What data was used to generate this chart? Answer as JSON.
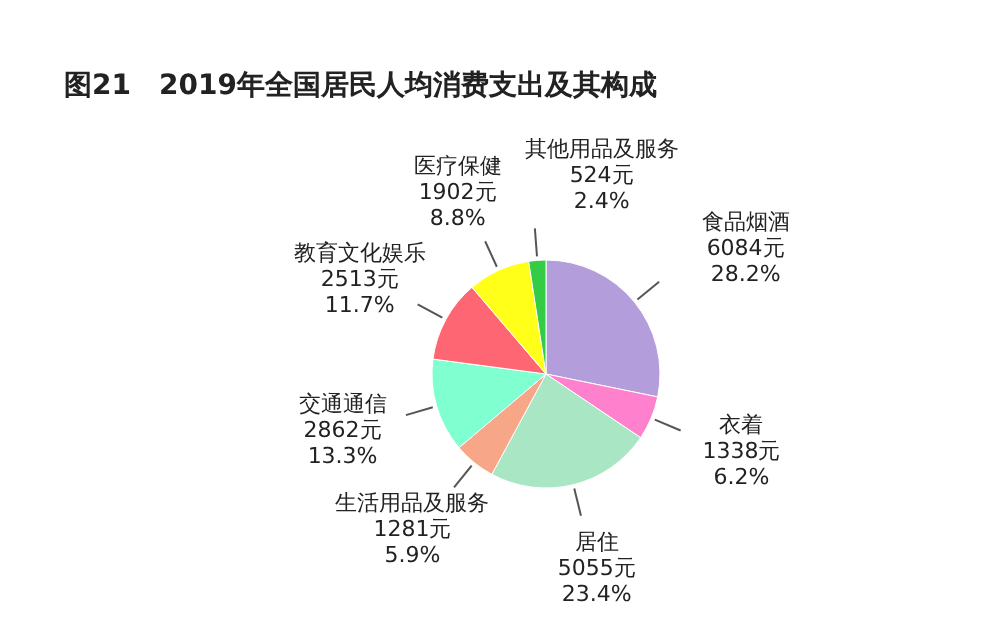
{
  "chart_data": {
    "type": "pie",
    "title": "图21　2019年全国居民人均消费支出及其构成",
    "categories": [
      "食品烟酒",
      "衣着",
      "居住",
      "生活用品及服务",
      "交通通信",
      "教育文化娱乐",
      "医疗保健",
      "其他用品及服务"
    ],
    "values": [
      6084,
      1338,
      5055,
      1281,
      2862,
      2513,
      1902,
      524
    ],
    "colors": [
      "#b39ddb",
      "#ff80cc",
      "#a8e6c4",
      "#f7a688",
      "#80ffd0",
      "#ff6673",
      "#ffff1a",
      "#33cc44"
    ],
    "value_labels": [
      "6084元\n28.2%",
      "1338元\n6.2%",
      "5055元\n23.4%",
      "1281元\n5.9%",
      "2862元\n13.3%",
      "2513元\n11.7%",
      "1902元\n8.8%",
      "524元\n2.4%"
    ]
  }
}
